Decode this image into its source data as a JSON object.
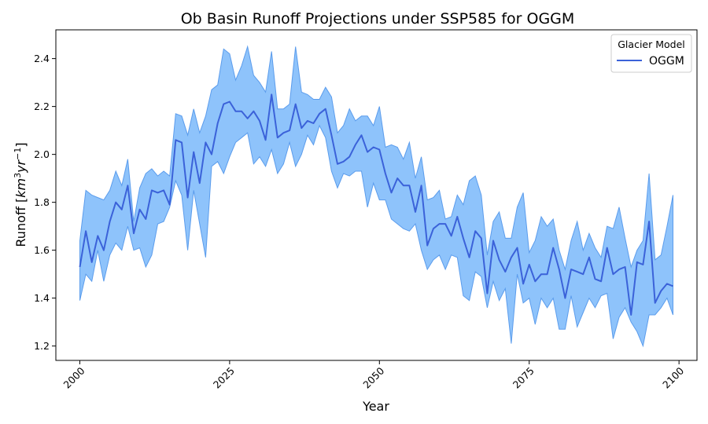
{
  "chart_data": {
    "type": "line",
    "title": "Ob Basin Runoff Projections under SSP585 for OGGM",
    "xlabel": "Year",
    "ylabel_main": "Runoff [",
    "ylabel_km": "km",
    "ylabel_km_exp": "3",
    "ylabel_yr": "yr",
    "ylabel_yr_exp": "−1",
    "ylabel_end": "]",
    "xlim": [
      1996,
      2103
    ],
    "ylim": [
      1.14,
      2.52
    ],
    "x_ticks": [
      2000,
      2025,
      2050,
      2075,
      2100
    ],
    "y_ticks": [
      1.2,
      1.4,
      1.6,
      1.8,
      2.0,
      2.2,
      2.4
    ],
    "x_tick_labels": [
      "2000",
      "2025",
      "2050",
      "2075",
      "2100"
    ],
    "y_tick_labels": [
      "1.2",
      "1.4",
      "1.6",
      "1.8",
      "2.0",
      "2.2",
      "2.4"
    ],
    "grid": false,
    "legend": {
      "title": "Glacier Model",
      "placement": "top-right",
      "entries": [
        "OGGM"
      ]
    },
    "colors": {
      "line": "#3b62d9",
      "band_fill": "#8ec3fb",
      "band_edge": "#5b9cec"
    },
    "x": [
      2000,
      2001,
      2002,
      2003,
      2004,
      2005,
      2006,
      2007,
      2008,
      2009,
      2010,
      2011,
      2012,
      2013,
      2014,
      2015,
      2016,
      2017,
      2018,
      2019,
      2020,
      2021,
      2022,
      2023,
      2024,
      2025,
      2026,
      2027,
      2028,
      2029,
      2030,
      2031,
      2032,
      2033,
      2034,
      2035,
      2036,
      2037,
      2038,
      2039,
      2040,
      2041,
      2042,
      2043,
      2044,
      2045,
      2046,
      2047,
      2048,
      2049,
      2050,
      2051,
      2052,
      2053,
      2054,
      2055,
      2056,
      2057,
      2058,
      2059,
      2060,
      2061,
      2062,
      2063,
      2064,
      2065,
      2066,
      2067,
      2068,
      2069,
      2070,
      2071,
      2072,
      2073,
      2074,
      2075,
      2076,
      2077,
      2078,
      2079,
      2080,
      2081,
      2082,
      2083,
      2084,
      2085,
      2086,
      2087,
      2088,
      2089,
      2090,
      2091,
      2092,
      2093,
      2094,
      2095,
      2096,
      2097,
      2098,
      2099
    ],
    "series": [
      {
        "name": "OGGM",
        "values": [
          1.53,
          1.68,
          1.55,
          1.66,
          1.6,
          1.72,
          1.8,
          1.77,
          1.87,
          1.67,
          1.77,
          1.73,
          1.85,
          1.84,
          1.85,
          1.79,
          2.06,
          2.05,
          1.82,
          2.01,
          1.88,
          2.05,
          2.0,
          2.13,
          2.21,
          2.22,
          2.18,
          2.18,
          2.15,
          2.18,
          2.14,
          2.06,
          2.25,
          2.07,
          2.09,
          2.1,
          2.21,
          2.11,
          2.14,
          2.13,
          2.17,
          2.19,
          2.08,
          1.96,
          1.97,
          1.99,
          2.04,
          2.08,
          2.01,
          2.03,
          2.02,
          1.92,
          1.84,
          1.9,
          1.87,
          1.87,
          1.76,
          1.87,
          1.62,
          1.69,
          1.71,
          1.71,
          1.66,
          1.74,
          1.65,
          1.57,
          1.68,
          1.65,
          1.42,
          1.64,
          1.56,
          1.51,
          1.57,
          1.61,
          1.46,
          1.54,
          1.47,
          1.5,
          1.5,
          1.61,
          1.52,
          1.4,
          1.52,
          1.51,
          1.5,
          1.57,
          1.48,
          1.47,
          1.61,
          1.5,
          1.52,
          1.53,
          1.33,
          1.55,
          1.54,
          1.72,
          1.38,
          1.43,
          1.46,
          1.45
        ],
        "lower": [
          1.39,
          1.5,
          1.47,
          1.6,
          1.47,
          1.58,
          1.63,
          1.6,
          1.7,
          1.6,
          1.61,
          1.53,
          1.58,
          1.71,
          1.72,
          1.78,
          1.89,
          1.83,
          1.6,
          1.85,
          1.71,
          1.57,
          1.95,
          1.97,
          1.92,
          1.99,
          2.05,
          2.07,
          2.09,
          1.96,
          1.99,
          1.95,
          2.02,
          1.92,
          1.96,
          2.05,
          1.95,
          2.0,
          2.08,
          2.04,
          2.12,
          2.07,
          1.93,
          1.86,
          1.92,
          1.91,
          1.93,
          1.93,
          1.78,
          1.88,
          1.81,
          1.81,
          1.73,
          1.71,
          1.69,
          1.68,
          1.71,
          1.6,
          1.52,
          1.56,
          1.58,
          1.52,
          1.58,
          1.57,
          1.41,
          1.39,
          1.51,
          1.49,
          1.36,
          1.47,
          1.39,
          1.44,
          1.21,
          1.5,
          1.38,
          1.4,
          1.29,
          1.4,
          1.36,
          1.4,
          1.27,
          1.27,
          1.41,
          1.28,
          1.34,
          1.4,
          1.36,
          1.41,
          1.42,
          1.23,
          1.32,
          1.36,
          1.3,
          1.26,
          1.2,
          1.33,
          1.33,
          1.36,
          1.4,
          1.33
        ],
        "upper": [
          1.64,
          1.85,
          1.83,
          1.82,
          1.81,
          1.85,
          1.93,
          1.87,
          1.98,
          1.72,
          1.86,
          1.92,
          1.94,
          1.91,
          1.93,
          1.91,
          2.17,
          2.16,
          2.08,
          2.19,
          2.09,
          2.16,
          2.27,
          2.29,
          2.44,
          2.42,
          2.31,
          2.37,
          2.45,
          2.33,
          2.3,
          2.26,
          2.43,
          2.19,
          2.19,
          2.21,
          2.45,
          2.26,
          2.25,
          2.23,
          2.23,
          2.28,
          2.24,
          2.09,
          2.12,
          2.19,
          2.14,
          2.16,
          2.16,
          2.12,
          2.2,
          2.03,
          2.04,
          2.03,
          1.98,
          2.05,
          1.9,
          1.99,
          1.81,
          1.82,
          1.85,
          1.73,
          1.74,
          1.83,
          1.79,
          1.89,
          1.91,
          1.83,
          1.58,
          1.72,
          1.76,
          1.65,
          1.65,
          1.78,
          1.84,
          1.59,
          1.64,
          1.74,
          1.7,
          1.73,
          1.6,
          1.52,
          1.64,
          1.72,
          1.6,
          1.67,
          1.61,
          1.57,
          1.7,
          1.69,
          1.78,
          1.65,
          1.53,
          1.6,
          1.64,
          1.92,
          1.56,
          1.58,
          1.7,
          1.83
        ]
      }
    ]
  }
}
